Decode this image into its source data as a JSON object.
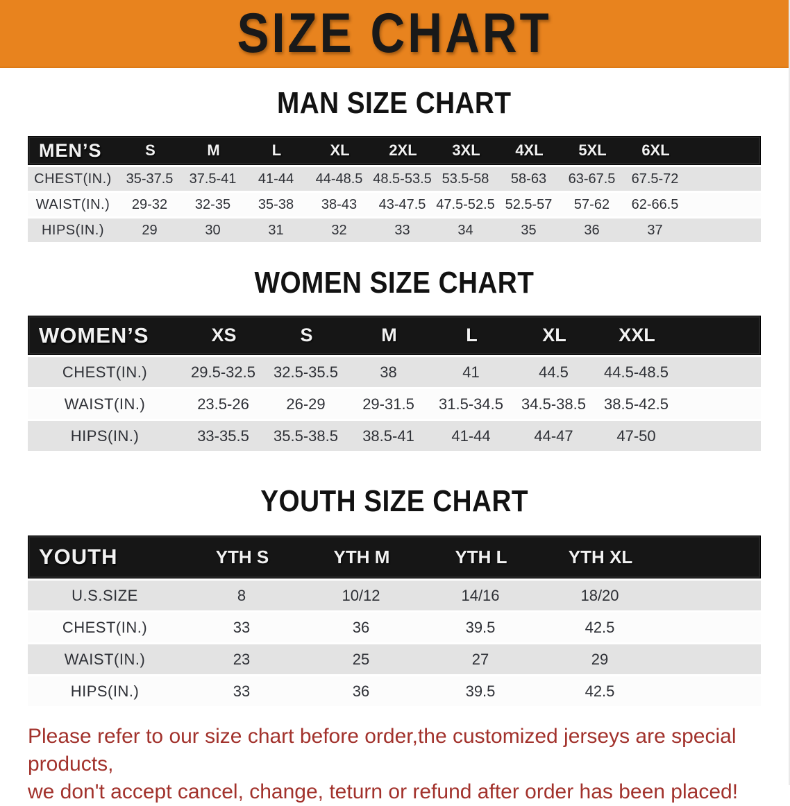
{
  "banner": {
    "title": "SIZE CHART"
  },
  "colors": {
    "banner_bg": "#E8831E",
    "table_header_bg": "#161616",
    "row_stripe": "#E3E3E3",
    "disclaimer_red": "#A2322C"
  },
  "sections": [
    {
      "heading": "MAN SIZE CHART",
      "table": {
        "corner": "MEN’S",
        "columns": [
          "S",
          "M",
          "L",
          "XL",
          "2XL",
          "3XL",
          "4XL",
          "5XL",
          "6XL"
        ],
        "rows": [
          {
            "label": "CHEST(IN.)",
            "values": [
              "35-37.5",
              "37.5-41",
              "41-44",
              "44-48.5",
              "48.5-53.5",
              "53.5-58",
              "58-63",
              "63-67.5",
              "67.5-72"
            ]
          },
          {
            "label": "WAIST(IN.)",
            "values": [
              "29-32",
              "32-35",
              "35-38",
              "38-43",
              "43-47.5",
              "47.5-52.5",
              "52.5-57",
              "57-62",
              "62-66.5"
            ]
          },
          {
            "label": "HIPS(IN.)",
            "values": [
              "29",
              "30",
              "31",
              "32",
              "33",
              "34",
              "35",
              "36",
              "37"
            ]
          }
        ]
      }
    },
    {
      "heading": "WOMEN SIZE CHART",
      "table": {
        "corner": "WOMEN’S",
        "columns": [
          "XS",
          "S",
          "M",
          "L",
          "XL",
          "XXL"
        ],
        "rows": [
          {
            "label": "CHEST(IN.)",
            "values": [
              "29.5-32.5",
              "32.5-35.5",
              "38",
              "41",
              "44.5",
              "44.5-48.5"
            ]
          },
          {
            "label": "WAIST(IN.)",
            "values": [
              "23.5-26",
              "26-29",
              "29-31.5",
              "31.5-34.5",
              "34.5-38.5",
              "38.5-42.5"
            ]
          },
          {
            "label": "HIPS(IN.)",
            "values": [
              "33-35.5",
              "35.5-38.5",
              "38.5-41",
              "41-44",
              "44-47",
              "47-50"
            ]
          }
        ]
      }
    },
    {
      "heading": "YOUTH SIZE CHART",
      "table": {
        "corner": "YOUTH",
        "columns": [
          "YTH S",
          "YTH M",
          "YTH L",
          "YTH XL"
        ],
        "rows": [
          {
            "label": "U.S.SIZE",
            "values": [
              "8",
              "10/12",
              "14/16",
              "18/20"
            ]
          },
          {
            "label": "CHEST(IN.)",
            "values": [
              "33",
              "36",
              "39.5",
              "42.5"
            ]
          },
          {
            "label": "WAIST(IN.)",
            "values": [
              "23",
              "25",
              "27",
              "29"
            ]
          },
          {
            "label": "HIPS(IN.)",
            "values": [
              "33",
              "36",
              "39.5",
              "42.5"
            ]
          }
        ]
      }
    }
  ],
  "disclaimer": {
    "line1": "Please refer to our size chart before order,the customized jerseys are special products,",
    "line2": "we don't accept cancel, change, teturn or refund after order has been placed!"
  }
}
